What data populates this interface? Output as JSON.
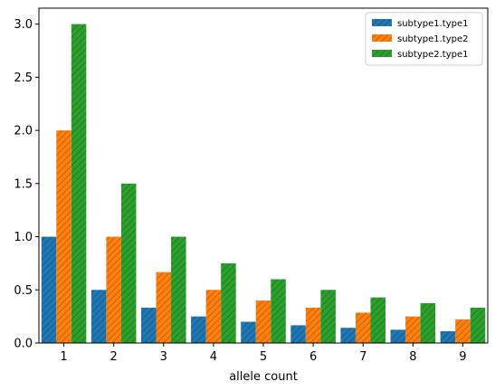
{
  "chart_data": {
    "type": "bar",
    "title": "",
    "xlabel": "allele count",
    "ylabel": "",
    "categories": [
      "1",
      "2",
      "3",
      "4",
      "5",
      "6",
      "7",
      "8",
      "9"
    ],
    "ylim": [
      0,
      3.15
    ],
    "yticks": [
      "0.0",
      "0.5",
      "1.0",
      "1.5",
      "2.0",
      "2.5",
      "3.0"
    ],
    "grid": false,
    "legend_position": "top-right",
    "series": [
      {
        "name": "subtype1.type1",
        "color": "#1f77b4",
        "hatch": "diagonal",
        "values": [
          1.0,
          0.5,
          0.333,
          0.25,
          0.2,
          0.167,
          0.143,
          0.125,
          0.111
        ]
      },
      {
        "name": "subtype1.type2",
        "color": "#ff7f0e",
        "hatch": "diagonal",
        "values": [
          2.0,
          1.0,
          0.667,
          0.5,
          0.4,
          0.333,
          0.286,
          0.25,
          0.222
        ]
      },
      {
        "name": "subtype2.type1",
        "color": "#2ca02c",
        "hatch": "diagonal",
        "values": [
          3.0,
          1.5,
          1.0,
          0.75,
          0.6,
          0.5,
          0.429,
          0.375,
          0.333
        ]
      }
    ]
  }
}
